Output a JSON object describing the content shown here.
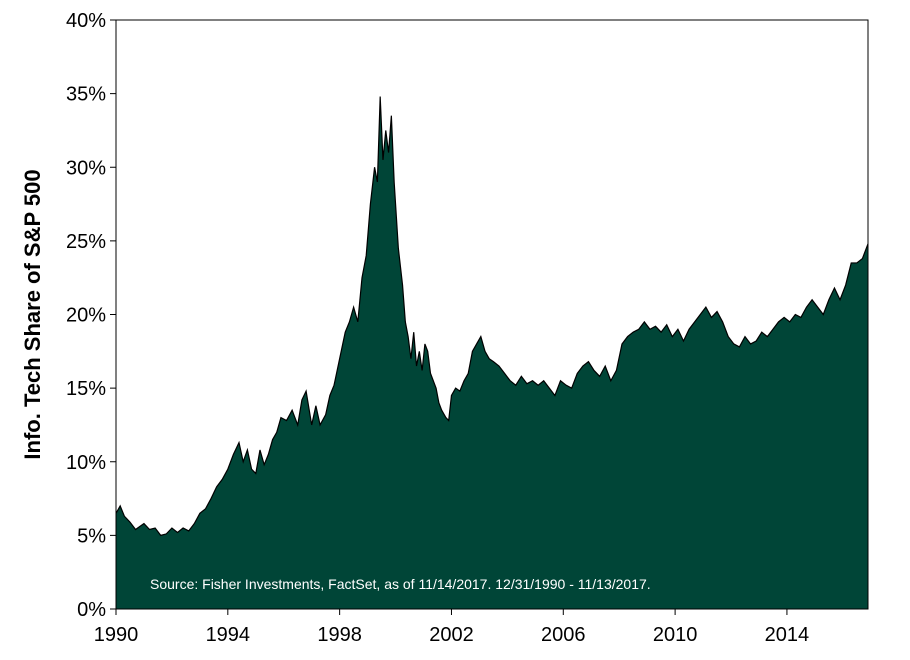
{
  "chart_data": {
    "type": "area",
    "ylabel": "Info. Tech Share of S&P 500",
    "xlabel": "",
    "xlim": [
      1990,
      2016.9
    ],
    "ylim": [
      0,
      40
    ],
    "x_ticks": [
      1990,
      1994,
      1998,
      2002,
      2006,
      2010,
      2014
    ],
    "x_tick_labels": [
      "1990",
      "1994",
      "1998",
      "2002",
      "2006",
      "2010",
      "2014"
    ],
    "y_ticks": [
      0,
      5,
      10,
      15,
      20,
      25,
      30,
      35,
      40
    ],
    "y_tick_labels": [
      "0%",
      "5%",
      "10%",
      "15%",
      "20%",
      "25%",
      "30%",
      "35%",
      "40%"
    ],
    "grid": false,
    "fill_color": "#004537",
    "line_color": "#000000",
    "annotation": "Source: Fisher Investments, FactSet, as of 11/14/2017.  12/31/1990 - 11/13/2017.",
    "series": [
      {
        "x": [
          1990.0,
          1990.15,
          1990.3,
          1990.5,
          1990.7,
          1990.85,
          1991.0,
          1991.2,
          1991.4,
          1991.6,
          1991.8,
          1992.0,
          1992.2,
          1992.4,
          1992.6,
          1992.8,
          1993.0,
          1993.2,
          1993.4,
          1993.6,
          1993.8,
          1994.0,
          1994.2,
          1994.4,
          1994.55,
          1994.7,
          1994.85,
          1995.0,
          1995.15,
          1995.3,
          1995.45,
          1995.6,
          1995.75,
          1995.9,
          1996.1,
          1996.3,
          1996.5,
          1996.65,
          1996.8,
          1997.0,
          1997.15,
          1997.3,
          1997.5,
          1997.65,
          1997.8,
          1998.0,
          1998.2,
          1998.35,
          1998.5,
          1998.65,
          1998.8,
          1998.95,
          1999.1,
          1999.25,
          1999.35,
          1999.45,
          1999.55,
          1999.65,
          1999.75,
          1999.85,
          1999.95,
          2000.1,
          2000.25,
          2000.35,
          2000.45,
          2000.55,
          2000.65,
          2000.75,
          2000.85,
          2000.95,
          2001.05,
          2001.15,
          2001.25,
          2001.35,
          2001.45,
          2001.55,
          2001.65,
          2001.8,
          2001.9,
          2002.0,
          2002.15,
          2002.3,
          2002.45,
          2002.6,
          2002.75,
          2002.9,
          2003.05,
          2003.2,
          2003.35,
          2003.5,
          2003.7,
          2003.9,
          2004.1,
          2004.3,
          2004.5,
          2004.7,
          2004.9,
          2005.1,
          2005.3,
          2005.5,
          2005.7,
          2005.9,
          2006.1,
          2006.3,
          2006.5,
          2006.7,
          2006.9,
          2007.1,
          2007.3,
          2007.5,
          2007.7,
          2007.9,
          2008.1,
          2008.3,
          2008.5,
          2008.7,
          2008.9,
          2009.1,
          2009.3,
          2009.5,
          2009.7,
          2009.9,
          2010.1,
          2010.3,
          2010.5,
          2010.7,
          2010.9,
          2011.1,
          2011.3,
          2011.5,
          2011.7,
          2011.9,
          2012.1,
          2012.3,
          2012.5,
          2012.7,
          2012.9,
          2013.1,
          2013.3,
          2013.5,
          2013.7,
          2013.9,
          2014.1,
          2014.3,
          2014.5,
          2014.7,
          2014.9,
          2015.1,
          2015.3,
          2015.5,
          2015.7,
          2015.9,
          2016.1,
          2016.3,
          2016.5,
          2016.7,
          2016.9
        ],
        "values": [
          6.5,
          7.0,
          6.3,
          5.9,
          5.4,
          5.6,
          5.8,
          5.4,
          5.5,
          5.0,
          5.1,
          5.5,
          5.2,
          5.5,
          5.3,
          5.8,
          6.5,
          6.8,
          7.5,
          8.3,
          8.8,
          9.5,
          10.5,
          11.3,
          10.0,
          10.8,
          9.5,
          9.2,
          10.8,
          9.8,
          10.5,
          11.5,
          12.0,
          13.0,
          12.8,
          13.5,
          12.5,
          14.2,
          14.8,
          12.5,
          13.8,
          12.5,
          13.2,
          14.5,
          15.2,
          17.0,
          18.8,
          19.5,
          20.5,
          19.5,
          22.5,
          24.0,
          27.5,
          30.0,
          29.0,
          34.8,
          30.5,
          32.5,
          31.0,
          33.5,
          29.0,
          24.5,
          22.0,
          19.5,
          18.5,
          17.0,
          18.8,
          16.5,
          17.5,
          16.2,
          18.0,
          17.5,
          16.0,
          15.5,
          15.0,
          14.0,
          13.5,
          13.0,
          12.8,
          14.5,
          15.0,
          14.8,
          15.5,
          16.0,
          17.5,
          18.0,
          18.5,
          17.5,
          17.0,
          16.8,
          16.5,
          16.0,
          15.5,
          15.2,
          15.8,
          15.3,
          15.5,
          15.2,
          15.5,
          15.0,
          14.5,
          15.5,
          15.2,
          15.0,
          16.0,
          16.5,
          16.8,
          16.2,
          15.8,
          16.5,
          15.5,
          16.2,
          18.0,
          18.5,
          18.8,
          19.0,
          19.5,
          19.0,
          19.2,
          18.8,
          19.3,
          18.5,
          19.0,
          18.2,
          19.0,
          19.5,
          20.0,
          20.5,
          19.8,
          20.2,
          19.5,
          18.5,
          18.0,
          17.8,
          18.5,
          18.0,
          18.2,
          18.8,
          18.5,
          19.0,
          19.5,
          19.8,
          19.5,
          20.0,
          19.8,
          20.5,
          21.0,
          20.5,
          20.0,
          21.0,
          21.8,
          21.0,
          22.0,
          23.5,
          23.5,
          23.8,
          24.8
        ]
      }
    ]
  }
}
